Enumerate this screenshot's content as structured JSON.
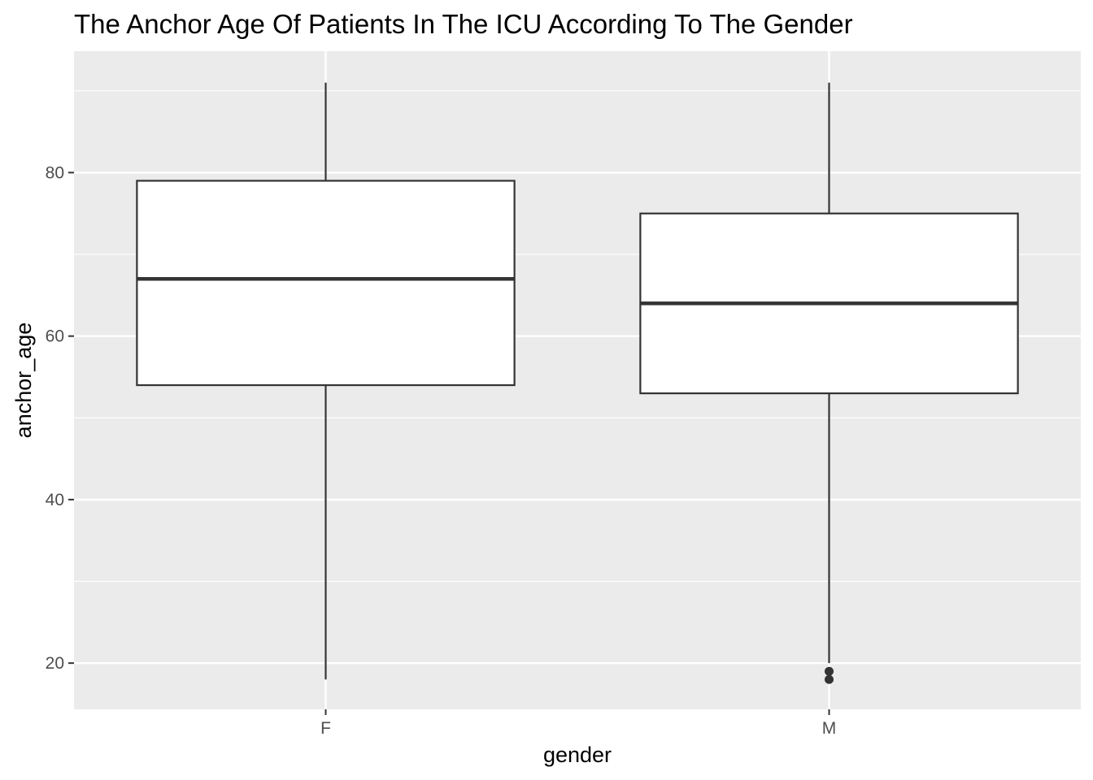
{
  "chart_data": {
    "type": "boxplot",
    "title": "The Anchor Age Of Patients In The ICU According To The Gender",
    "xlabel": "gender",
    "ylabel": "anchor_age",
    "categories": [
      "F",
      "M"
    ],
    "boxes": [
      {
        "category": "F",
        "whisker_low": 18,
        "q1": 54,
        "median": 67,
        "q3": 79,
        "whisker_high": 91,
        "outliers": []
      },
      {
        "category": "M",
        "whisker_low": 20,
        "q1": 53,
        "median": 64,
        "q3": 75,
        "whisker_high": 91,
        "outliers": [
          18,
          19
        ]
      }
    ],
    "ylim": [
      14.35,
      94.85
    ],
    "y_ticks": [
      20,
      40,
      60,
      80
    ],
    "y_minor": [
      30,
      50,
      70,
      90
    ],
    "grid": true,
    "legend": "none",
    "colors": {
      "panel": "#EBEBEB",
      "grid": "#FFFFFF",
      "box_fill": "#FFFFFF",
      "box_stroke": "#333333",
      "tick": "#333333"
    }
  }
}
